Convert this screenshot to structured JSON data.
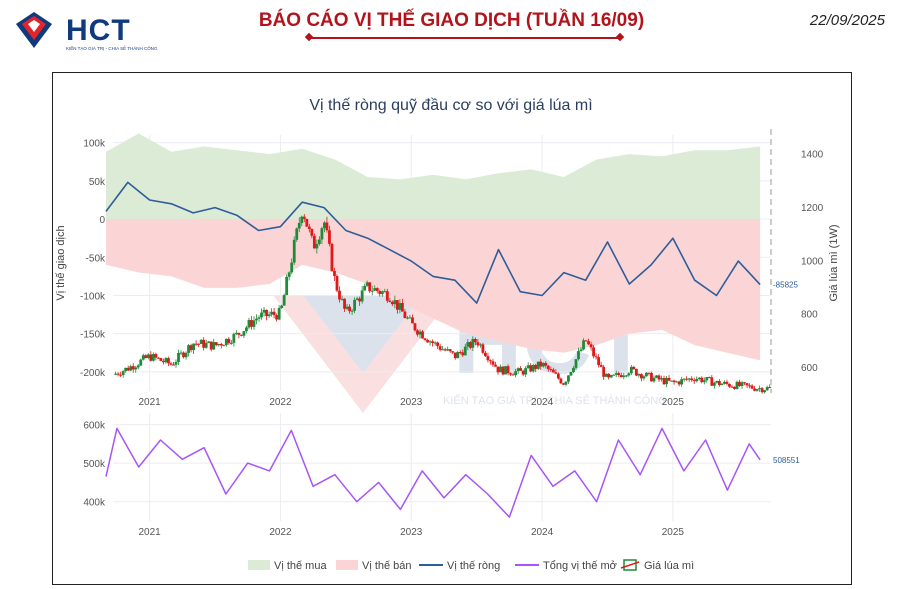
{
  "header": {
    "logo_text": "HCT",
    "logo_tagline": "KIẾN TẠO GIÁ TRỊ - CHIA SẺ THÀNH CÔNG",
    "report_title": "BÁO CÁO VỊ THẾ GIAO DỊCH (TUẦN 16/09)",
    "report_date": "22/09/2025"
  },
  "colors": {
    "brand_red": "#b3141c",
    "brand_blue": "#0f3a7d",
    "long_fill": "#dcebd6",
    "short_fill": "#fbd5d5",
    "net_line": "#2e5d9a",
    "oi_line": "#a855f7",
    "candle_up": "#1f8a3a",
    "candle_down": "#e01818"
  },
  "watermark": {
    "text": "HCT",
    "tagline": "KIẾN TẠO GIÁ TRỊ - CHIA SẺ THÀNH CÔNG"
  },
  "chart_data": [
    {
      "type": "area",
      "title": "Vị thế ròng quỹ đầu cơ so với giá lúa mì",
      "ylabel": "Vị thế giao dịch",
      "y2label": "Giá lúa mì (1W)",
      "ylim": [
        -225000,
        110000
      ],
      "y_ticks": [
        "100k",
        "50k",
        "0",
        "-50k",
        "-100k",
        "-150k",
        "-200k"
      ],
      "y2lim": [
        510,
        1470
      ],
      "y2_ticks": [
        "1400",
        "1200",
        "1000",
        "800",
        "600"
      ],
      "x_ticks": [
        "2021",
        "2022",
        "2023",
        "2024",
        "2025"
      ],
      "grid": true,
      "legend_position": "bottom",
      "last_net_label": "-85825",
      "series": [
        {
          "name": "Vị thế mua",
          "kind": "area",
          "x": [
            "2020-09",
            "2020-12",
            "2021-03",
            "2021-06",
            "2021-09",
            "2021-12",
            "2022-03",
            "2022-06",
            "2022-09",
            "2022-12",
            "2023-03",
            "2023-06",
            "2023-09",
            "2023-12",
            "2024-03",
            "2024-06",
            "2024-09",
            "2024-12",
            "2025-03",
            "2025-06",
            "2025-09"
          ],
          "values": [
            88000,
            112000,
            88000,
            95000,
            90000,
            85000,
            92000,
            78000,
            55000,
            52000,
            58000,
            52000,
            60000,
            65000,
            55000,
            78000,
            85000,
            82000,
            90000,
            90000,
            95000
          ]
        },
        {
          "name": "Vị thế bán",
          "kind": "area",
          "x": [
            "2020-09",
            "2020-12",
            "2021-03",
            "2021-06",
            "2021-09",
            "2021-12",
            "2022-03",
            "2022-06",
            "2022-09",
            "2022-12",
            "2023-03",
            "2023-06",
            "2023-09",
            "2023-12",
            "2024-03",
            "2024-06",
            "2024-09",
            "2024-12",
            "2025-03",
            "2025-06",
            "2025-09"
          ],
          "values": [
            -60000,
            -70000,
            -75000,
            -90000,
            -90000,
            -85000,
            -60000,
            -70000,
            -85000,
            -110000,
            -130000,
            -150000,
            -160000,
            -170000,
            -175000,
            -165000,
            -150000,
            -145000,
            -165000,
            -175000,
            -185000
          ]
        },
        {
          "name": "Vị thế ròng",
          "kind": "line",
          "x": [
            "2020-09",
            "2020-11",
            "2021-01",
            "2021-03",
            "2021-05",
            "2021-07",
            "2021-09",
            "2021-11",
            "2022-01",
            "2022-03",
            "2022-05",
            "2022-07",
            "2022-09",
            "2022-11",
            "2023-01",
            "2023-03",
            "2023-05",
            "2023-07",
            "2023-09",
            "2023-11",
            "2024-01",
            "2024-03",
            "2024-05",
            "2024-07",
            "2024-09",
            "2024-11",
            "2025-01",
            "2025-03",
            "2025-05",
            "2025-07",
            "2025-09"
          ],
          "values": [
            10000,
            48000,
            25000,
            20000,
            8000,
            15000,
            5000,
            -15000,
            -10000,
            22000,
            15000,
            -15000,
            -25000,
            -40000,
            -55000,
            -75000,
            -80000,
            -110000,
            -40000,
            -95000,
            -100000,
            -70000,
            -80000,
            -30000,
            -85000,
            -60000,
            -25000,
            -80000,
            -100000,
            -55000,
            -85825
          ]
        },
        {
          "name": "Giá lúa mì",
          "kind": "candlestick",
          "x": [
            "2020-09",
            "2020-11",
            "2021-01",
            "2021-03",
            "2021-05",
            "2021-07",
            "2021-09",
            "2021-11",
            "2022-01",
            "2022-03",
            "2022-04",
            "2022-05",
            "2022-06",
            "2022-07",
            "2022-09",
            "2022-11",
            "2023-01",
            "2023-03",
            "2023-05",
            "2023-07",
            "2023-09",
            "2023-11",
            "2024-01",
            "2024-03",
            "2024-05",
            "2024-07",
            "2024-09",
            "2024-11",
            "2025-01",
            "2025-03",
            "2025-05",
            "2025-07",
            "2025-09"
          ],
          "values": [
            560,
            595,
            640,
            610,
            690,
            680,
            720,
            790,
            800,
            1200,
            1050,
            1150,
            920,
            800,
            900,
            870,
            760,
            690,
            640,
            700,
            590,
            580,
            610,
            540,
            700,
            550,
            590,
            560,
            540,
            560,
            540,
            530,
            520
          ]
        }
      ]
    },
    {
      "type": "line",
      "ylim": [
        350000,
        630000
      ],
      "y_ticks": [
        "600k",
        "500k",
        "400k"
      ],
      "x_ticks": [
        "2021",
        "2022",
        "2023",
        "2024",
        "2025"
      ],
      "last_label": "508551",
      "series": [
        {
          "name": "Tổng vị thế mở",
          "x": [
            "2020-09",
            "2020-10",
            "2020-12",
            "2021-02",
            "2021-04",
            "2021-06",
            "2021-08",
            "2021-10",
            "2021-12",
            "2022-02",
            "2022-04",
            "2022-06",
            "2022-08",
            "2022-10",
            "2022-12",
            "2023-02",
            "2023-04",
            "2023-06",
            "2023-08",
            "2023-10",
            "2023-12",
            "2024-02",
            "2024-04",
            "2024-06",
            "2024-08",
            "2024-10",
            "2024-12",
            "2025-02",
            "2025-04",
            "2025-06",
            "2025-08",
            "2025-09"
          ],
          "values": [
            465000,
            590000,
            490000,
            560000,
            510000,
            540000,
            420000,
            500000,
            480000,
            585000,
            440000,
            470000,
            400000,
            450000,
            380000,
            480000,
            410000,
            470000,
            420000,
            360000,
            520000,
            440000,
            480000,
            400000,
            560000,
            470000,
            590000,
            480000,
            560000,
            430000,
            550000,
            508551
          ]
        }
      ]
    }
  ]
}
